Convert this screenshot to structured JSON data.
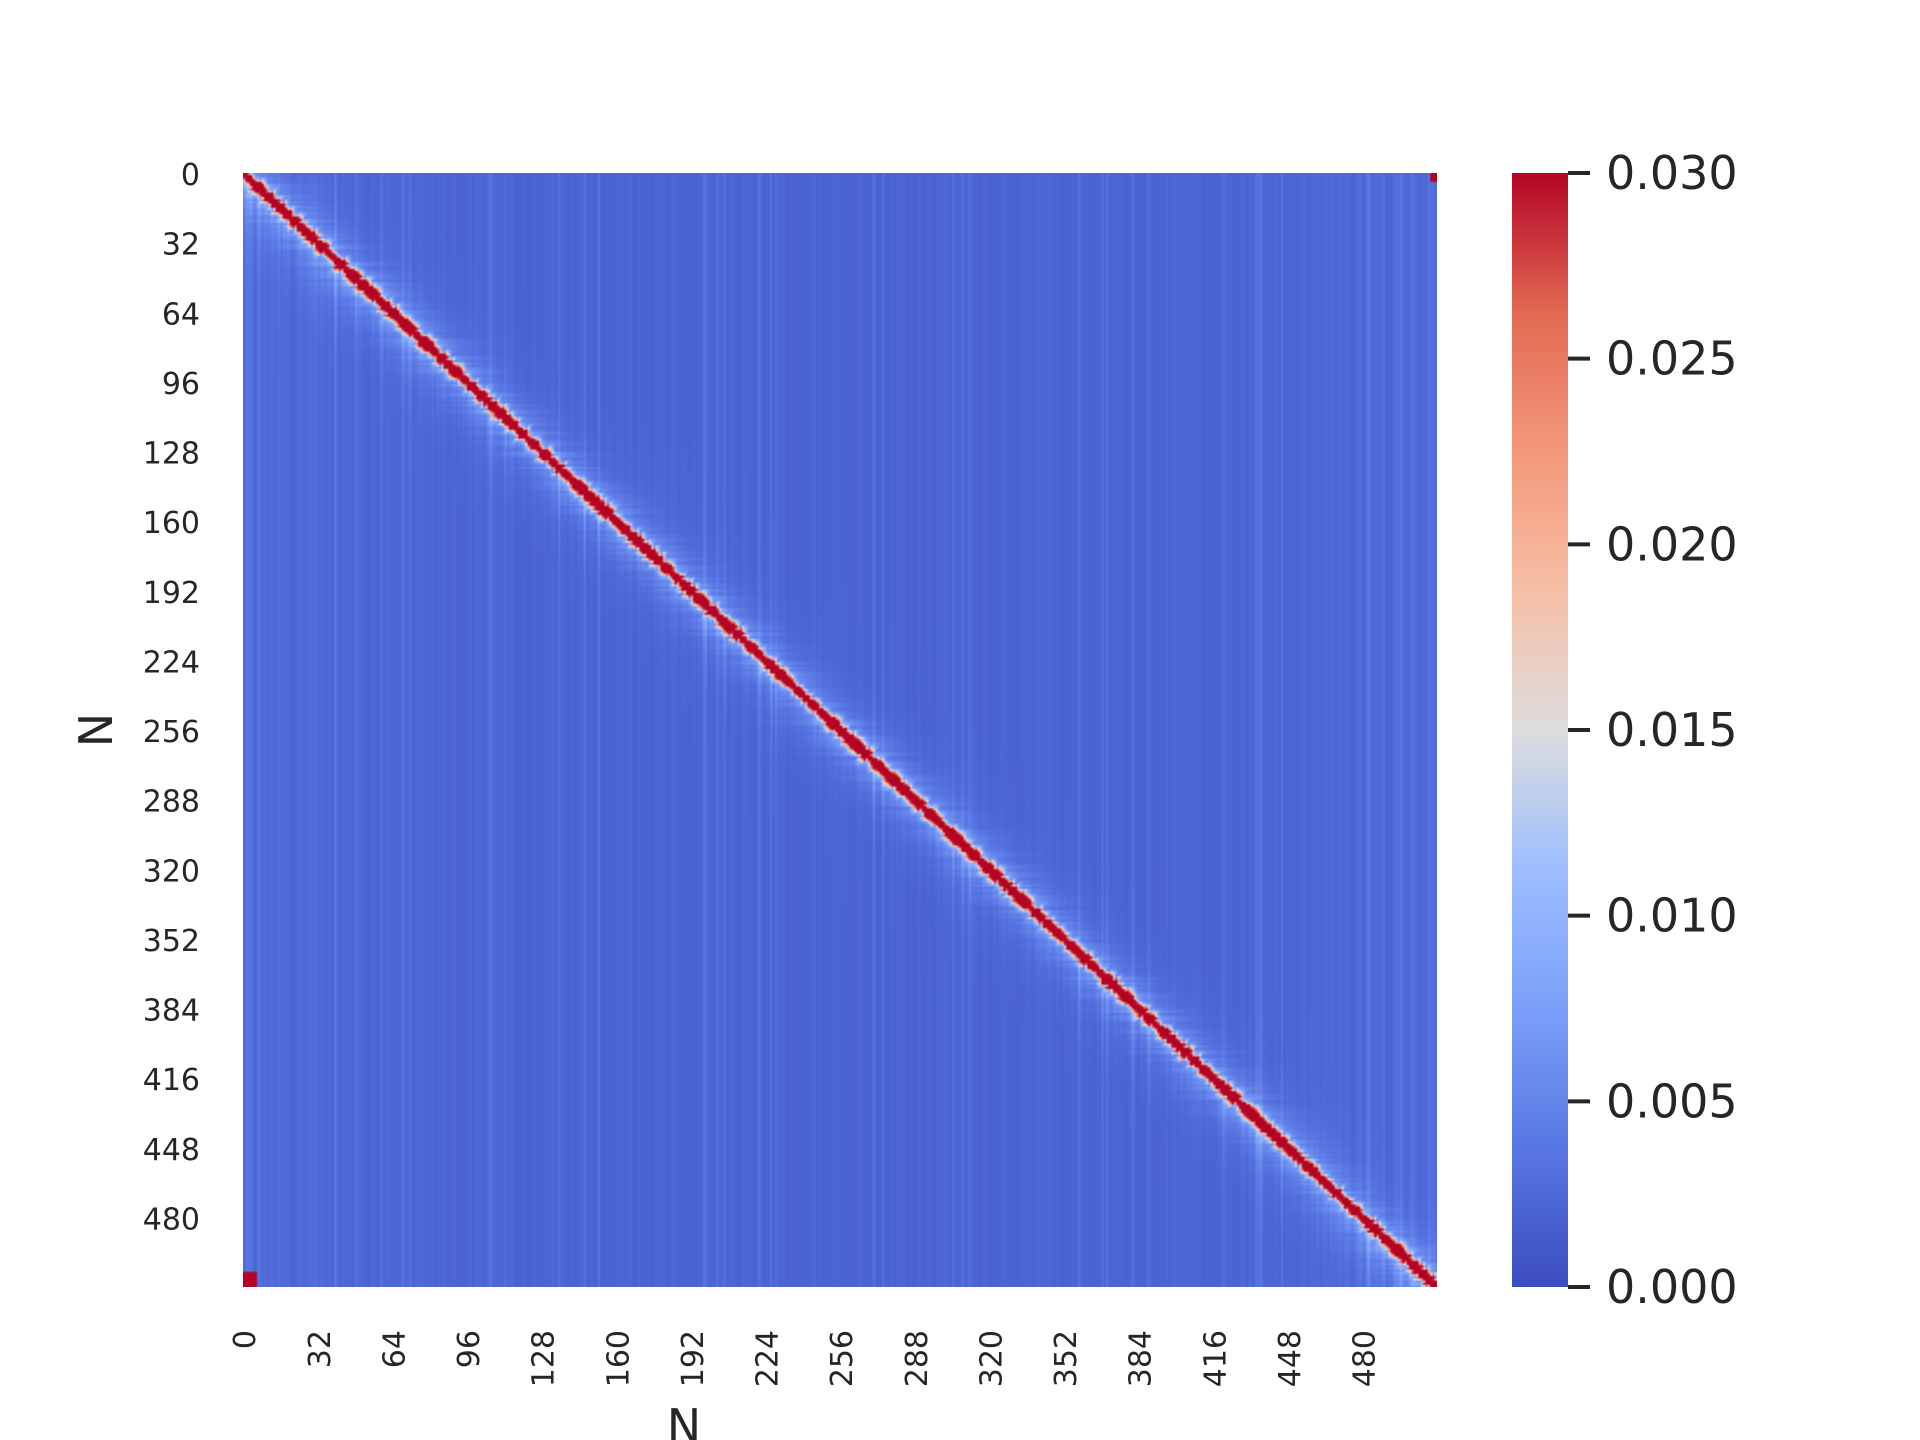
{
  "chart_data": {
    "type": "heatmap",
    "title": "",
    "xlabel": "N",
    "ylabel": "N",
    "rows": 512,
    "cols": 512,
    "x_ticks": [
      "0",
      "32",
      "64",
      "96",
      "128",
      "160",
      "192",
      "224",
      "256",
      "288",
      "320",
      "352",
      "384",
      "416",
      "448",
      "480"
    ],
    "y_ticks": [
      "0",
      "32",
      "64",
      "96",
      "128",
      "160",
      "192",
      "224",
      "256",
      "288",
      "320",
      "352",
      "384",
      "416",
      "448",
      "480"
    ],
    "colormap": "coolwarm",
    "vmin": 0.0,
    "vmax": 0.03,
    "colorbar_ticks": [
      "0.000",
      "0.005",
      "0.010",
      "0.015",
      "0.020",
      "0.025",
      "0.030"
    ],
    "colorbar_values": [
      0.0,
      0.005,
      0.01,
      0.015,
      0.02,
      0.025,
      0.03
    ],
    "pattern": "strong diagonal band (values >= 0.030) from top-left to bottom-right on a near-zero (about 0.002) background; light blue halo about 0.008 around the diagonal with faint vertical streaks; small saturated corners at top-right and bottom-left"
  }
}
